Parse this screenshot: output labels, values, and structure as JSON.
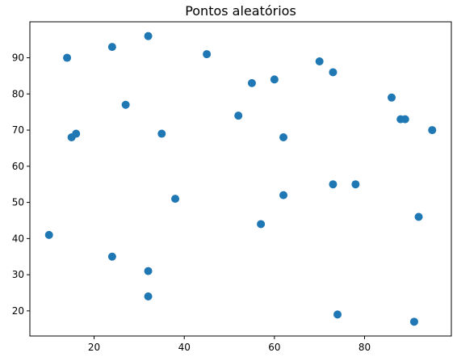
{
  "chart_data": {
    "type": "scatter",
    "title": "Pontos aleatórios",
    "xlabel": "",
    "ylabel": "",
    "xlim": [
      5.75,
      99.25
    ],
    "ylim": [
      13.05,
      99.95
    ],
    "grid": false,
    "marker_color": "#1f77b4",
    "x_ticks": [
      20,
      40,
      60,
      80
    ],
    "y_ticks": [
      20,
      30,
      40,
      50,
      60,
      70,
      80,
      90
    ],
    "x": [
      10,
      14,
      15,
      16,
      24,
      24,
      27,
      32,
      32,
      32,
      35,
      38,
      45,
      52,
      55,
      57,
      60,
      62,
      62,
      70,
      73,
      73,
      74,
      78,
      86,
      88,
      89,
      91,
      92,
      95
    ],
    "y": [
      41,
      90,
      68,
      69,
      93,
      35,
      77,
      96,
      31,
      24,
      69,
      51,
      91,
      74,
      83,
      44,
      84,
      68,
      52,
      89,
      86,
      55,
      19,
      55,
      79,
      73,
      73,
      17,
      46,
      70
    ]
  }
}
